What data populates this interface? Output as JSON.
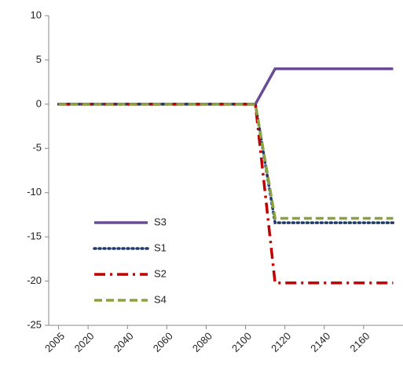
{
  "chart_data": {
    "type": "line",
    "x": [
      2005,
      2105,
      2115,
      2175
    ],
    "series": [
      {
        "name": "S3",
        "color": "#6a4c93",
        "dash": "solid",
        "values": [
          0,
          0,
          4,
          4
        ]
      },
      {
        "name": "S1",
        "color": "#1f3a6e",
        "dash": "dotted",
        "values": [
          0,
          0,
          -13.4,
          -13.4
        ]
      },
      {
        "name": "S2",
        "color": "#c00000",
        "dash": "dashdot",
        "values": [
          0,
          0,
          -20.2,
          -20.2
        ]
      },
      {
        "name": "S4",
        "color": "#8aa340",
        "dash": "dashed",
        "values": [
          0,
          0,
          -12.9,
          -12.9
        ]
      }
    ],
    "xlim": [
      2000,
      2180
    ],
    "xticks": [
      2005,
      2020,
      2040,
      2060,
      2080,
      2100,
      2120,
      2140,
      2160
    ],
    "ylim": [
      -25,
      10
    ],
    "yticks": [
      -25,
      -20,
      -15,
      -10,
      -5,
      0,
      5,
      10
    ],
    "legend": "left"
  }
}
